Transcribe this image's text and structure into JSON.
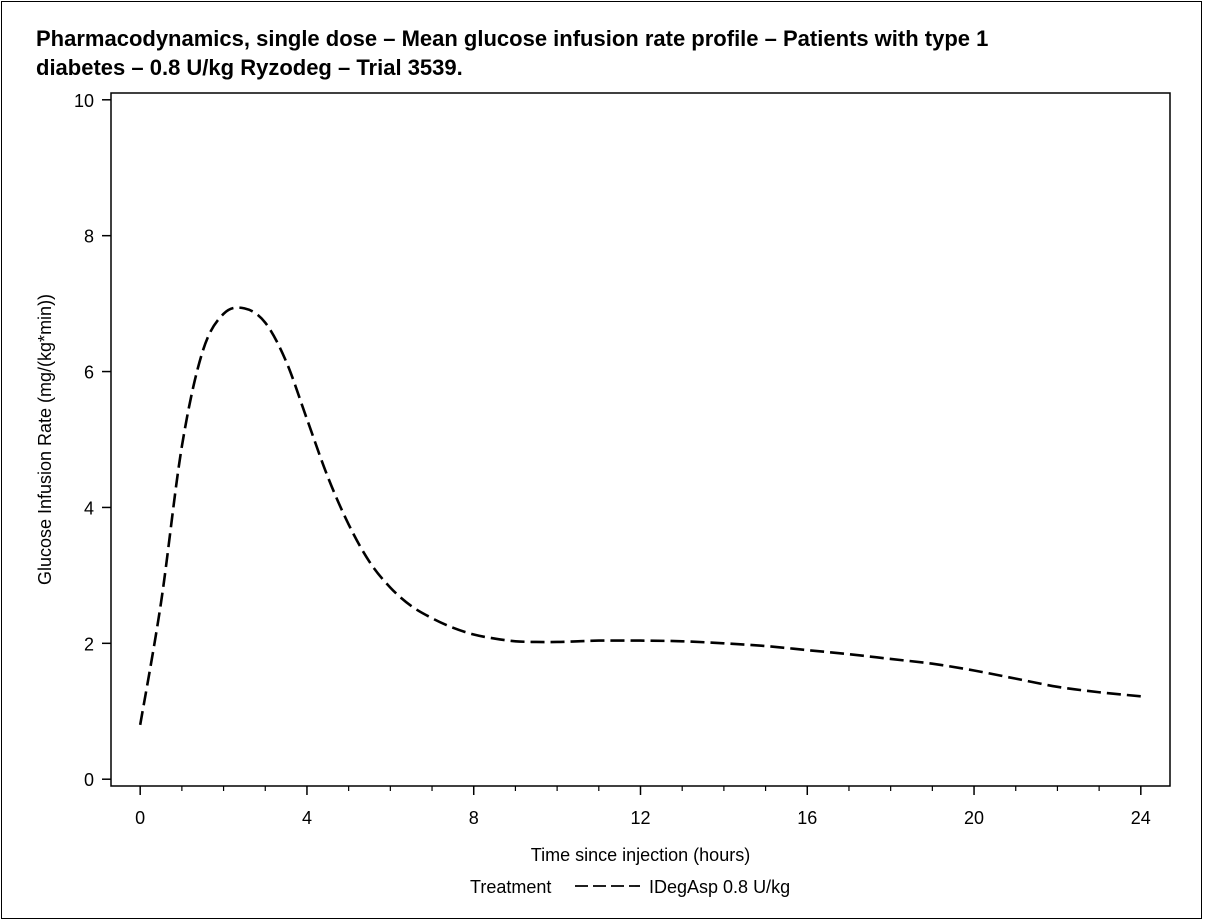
{
  "chart_data": {
    "type": "line",
    "title": "Pharmacodynamics, single dose – Mean glucose infusion rate profile – Patients with type 1 diabetes – 0.8 U/kg Ryzodeg – Trial 3539.",
    "title_lines": [
      "Pharmacodynamics, single dose – Mean glucose infusion rate profile – Patients with type 1",
      "diabetes – 0.8 U/kg Ryzodeg – Trial 3539."
    ],
    "xlabel": "Time since injection (hours)",
    "ylabel": "Glucose Infusion Rate (mg/(kg*min))",
    "xlim": [
      -0.7,
      24.7
    ],
    "ylim": [
      -0.1,
      10.1
    ],
    "x_ticks": [
      0,
      4,
      8,
      12,
      16,
      20,
      24
    ],
    "x_minor_ticks": [
      1,
      2,
      3,
      5,
      6,
      7,
      9,
      10,
      11,
      13,
      14,
      15,
      17,
      18,
      19,
      21,
      22,
      23
    ],
    "y_ticks": [
      0,
      2,
      4,
      6,
      8,
      10
    ],
    "grid": false,
    "legend": {
      "placement": "bottom",
      "title": "Treatment",
      "entries": [
        {
          "label": "IDegAsp 0.8 U/kg",
          "line_style": "dashed"
        }
      ]
    },
    "series": [
      {
        "name": "IDegAsp 0.8 U/kg",
        "color": "#000000",
        "line_style": "dashed",
        "x": [
          0,
          0.5,
          1,
          1.5,
          2,
          2.5,
          3,
          3.5,
          4,
          4.5,
          5,
          5.5,
          6,
          6.5,
          7,
          7.5,
          8,
          8.5,
          9,
          9.5,
          10,
          10.5,
          11,
          12,
          13,
          14,
          15,
          16,
          17,
          18,
          19,
          20,
          21,
          22,
          23,
          24
        ],
        "y": [
          0.8,
          2.6,
          4.9,
          6.3,
          6.85,
          6.93,
          6.72,
          6.15,
          5.3,
          4.45,
          3.75,
          3.2,
          2.82,
          2.55,
          2.37,
          2.23,
          2.13,
          2.07,
          2.03,
          2.02,
          2.02,
          2.03,
          2.04,
          2.04,
          2.03,
          2.0,
          1.96,
          1.9,
          1.84,
          1.77,
          1.7,
          1.6,
          1.48,
          1.36,
          1.28,
          1.22
        ]
      }
    ]
  }
}
